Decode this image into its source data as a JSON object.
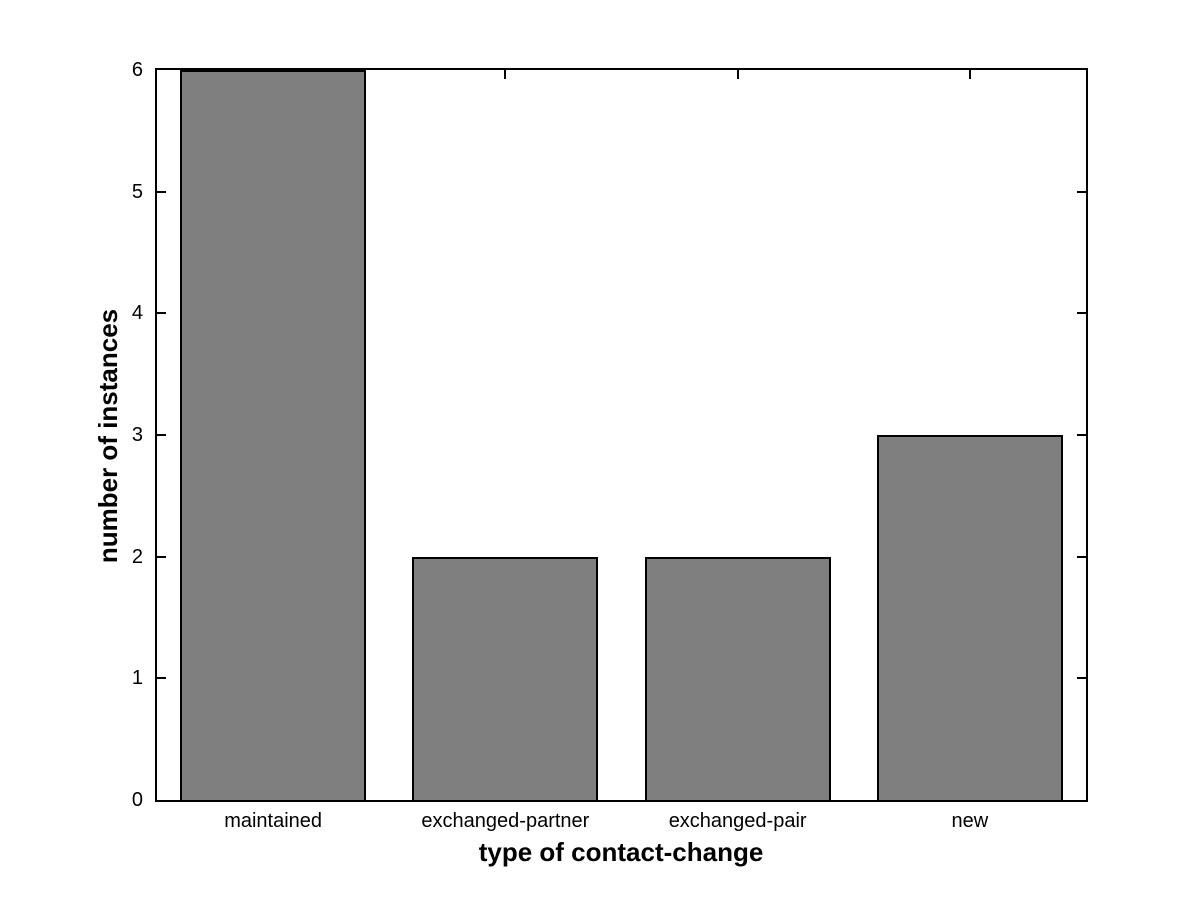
{
  "chart_data": {
    "type": "bar",
    "categories": [
      "maintained",
      "exchanged-partner",
      "exchanged-pair",
      "new"
    ],
    "values": [
      6,
      2,
      2,
      3
    ],
    "title": "",
    "xlabel": "type of contact-change",
    "ylabel": "number of instances",
    "ylim": [
      0,
      6
    ],
    "yticks": [
      0,
      1,
      2,
      3,
      4,
      5,
      6
    ],
    "bar_width_fraction": 0.8,
    "legend": null,
    "grid": false,
    "colors": {
      "bar_fill": "#7F7F7F",
      "bar_edge": "#000000",
      "axis": "#000000",
      "background": "#ffffff",
      "text": "#000000"
    }
  }
}
